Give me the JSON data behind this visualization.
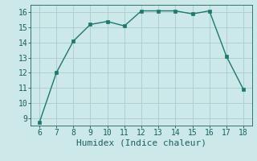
{
  "x": [
    6,
    7,
    8,
    9,
    10,
    11,
    12,
    13,
    14,
    15,
    16,
    17,
    18
  ],
  "y": [
    8.7,
    12.0,
    14.1,
    15.2,
    15.4,
    15.1,
    16.1,
    16.1,
    16.1,
    15.9,
    16.1,
    13.1,
    10.9
  ],
  "line_color": "#1a7a6e",
  "marker": "s",
  "marker_size": 2.5,
  "bg_color": "#cce8e8",
  "grid_color": "#aacccc",
  "xlabel": "Humidex (Indice chaleur)",
  "xlim": [
    5.5,
    18.5
  ],
  "ylim": [
    8.5,
    16.5
  ],
  "xticks": [
    6,
    7,
    8,
    9,
    10,
    11,
    12,
    13,
    14,
    15,
    16,
    17,
    18
  ],
  "yticks": [
    9,
    10,
    11,
    12,
    13,
    14,
    15,
    16
  ],
  "tick_fontsize": 7,
  "xlabel_fontsize": 8,
  "tick_color": "#1a6060",
  "spine_color": "#1a6060"
}
